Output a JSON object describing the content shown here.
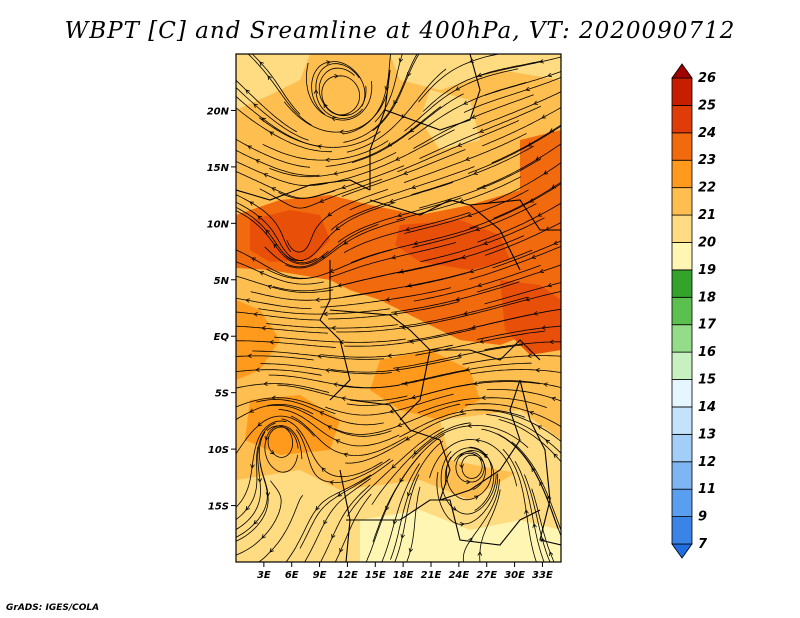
{
  "title": "WBPT [C] and Sreamline at 400hPa, VT: 2020090712",
  "map": {
    "lon_range": [
      0,
      35
    ],
    "lat_range": [
      -20,
      25
    ],
    "x_ticks": [
      "3E",
      "6E",
      "9E",
      "12E",
      "15E",
      "18E",
      "21E",
      "24E",
      "27E",
      "30E",
      "33E"
    ],
    "y_ticks": [
      "20N",
      "15N",
      "10N",
      "5N",
      "EQ",
      "5S",
      "10S",
      "15S"
    ],
    "field": "wet-bulb potential temperature",
    "overlay": "streamlines"
  },
  "colorbar": {
    "labels": [
      "7",
      "9",
      "11",
      "12",
      "13",
      "14",
      "15",
      "16",
      "17",
      "18",
      "19",
      "20",
      "21",
      "22",
      "23",
      "24",
      "25",
      "26"
    ],
    "colors": [
      "#1e6ee0",
      "#3a84e8",
      "#5a9ef0",
      "#7eb6f4",
      "#a2cef8",
      "#c4e2fb",
      "#e6f6ff",
      "#c8f0c0",
      "#94dc88",
      "#5cc050",
      "#34a32c",
      "#fff6b4",
      "#ffdc82",
      "#ffbe50",
      "#ff9a1c",
      "#f26a0e",
      "#e03c08",
      "#c81e00",
      "#a00000"
    ]
  },
  "credit": "GrADS: IGES/COLA"
}
